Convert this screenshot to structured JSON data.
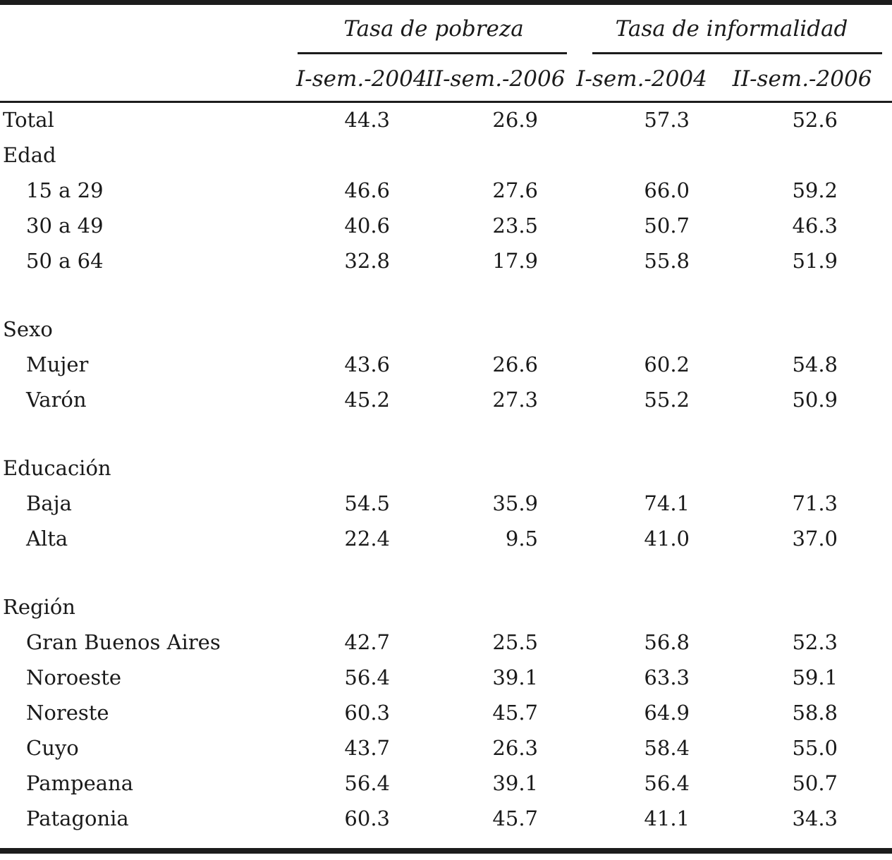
{
  "table": {
    "col_groups": [
      {
        "label": "Tasa de pobreza",
        "columns": [
          "I-sem.-2004",
          "II-sem.-2006"
        ]
      },
      {
        "label": "Tasa de informalidad",
        "columns": [
          "I-sem.-2004",
          "II-sem.-2006"
        ]
      }
    ],
    "rows": [
      {
        "type": "data",
        "label": "Total",
        "indent": false,
        "values": [
          "44.3",
          "26.9",
          "57.3",
          "52.6"
        ]
      },
      {
        "type": "section",
        "label": "Edad",
        "indent": false,
        "values": []
      },
      {
        "type": "data",
        "label": "15 a 29",
        "indent": true,
        "values": [
          "46.6",
          "27.6",
          "66.0",
          "59.2"
        ]
      },
      {
        "type": "data",
        "label": "30 a 49",
        "indent": true,
        "values": [
          "40.6",
          "23.5",
          "50.7",
          "46.3"
        ]
      },
      {
        "type": "data",
        "label": "50 a 64",
        "indent": true,
        "values": [
          "32.8",
          "17.9",
          "55.8",
          "51.9"
        ]
      },
      {
        "type": "spacer"
      },
      {
        "type": "section",
        "label": "Sexo",
        "indent": false,
        "values": []
      },
      {
        "type": "data",
        "label": "Mujer",
        "indent": true,
        "values": [
          "43.6",
          "26.6",
          "60.2",
          "54.8"
        ]
      },
      {
        "type": "data",
        "label": "Varón",
        "indent": true,
        "values": [
          "45.2",
          "27.3",
          "55.2",
          "50.9"
        ]
      },
      {
        "type": "spacer"
      },
      {
        "type": "section",
        "label": "Educación",
        "indent": false,
        "values": []
      },
      {
        "type": "data",
        "label": "Baja",
        "indent": true,
        "values": [
          "54.5",
          "35.9",
          "74.1",
          "71.3"
        ]
      },
      {
        "type": "data",
        "label": "Alta",
        "indent": true,
        "values": [
          "22.4",
          "9.5",
          "41.0",
          "37.0"
        ]
      },
      {
        "type": "spacer"
      },
      {
        "type": "section",
        "label": "Región",
        "indent": false,
        "values": []
      },
      {
        "type": "data",
        "label": "Gran Buenos Aires",
        "indent": true,
        "values": [
          "42.7",
          "25.5",
          "56.8",
          "52.3"
        ]
      },
      {
        "type": "data",
        "label": "Noroeste",
        "indent": true,
        "values": [
          "56.4",
          "39.1",
          "63.3",
          "59.1"
        ]
      },
      {
        "type": "data",
        "label": "Noreste",
        "indent": true,
        "values": [
          "60.3",
          "45.7",
          "64.9",
          "58.8"
        ]
      },
      {
        "type": "data",
        "label": "Cuyo",
        "indent": true,
        "values": [
          "43.7",
          "26.3",
          "58.4",
          "55.0"
        ]
      },
      {
        "type": "data",
        "label": "Pampeana",
        "indent": true,
        "values": [
          "56.4",
          "39.1",
          "56.4",
          "50.7"
        ]
      },
      {
        "type": "data",
        "label": "Patagonia",
        "indent": true,
        "values": [
          "60.3",
          "45.7",
          "41.1",
          "34.3"
        ]
      }
    ]
  },
  "chart_data": {
    "type": "table",
    "column_groups": [
      "Tasa de pobreza",
      "Tasa de informalidad"
    ],
    "columns": [
      "Tasa de pobreza I-sem.-2004",
      "Tasa de pobreza II-sem.-2006",
      "Tasa de informalidad I-sem.-2004",
      "Tasa de informalidad II-sem.-2006"
    ],
    "categories": [
      "Total",
      "15 a 29",
      "30 a 49",
      "50 a 64",
      "Mujer",
      "Varón",
      "Baja",
      "Alta",
      "Gran Buenos Aires",
      "Noroeste",
      "Noreste",
      "Cuyo",
      "Pampeana",
      "Patagonia"
    ],
    "series": [
      {
        "name": "Tasa de pobreza I-sem.-2004",
        "values": [
          44.3,
          46.6,
          40.6,
          32.8,
          43.6,
          45.2,
          54.5,
          22.4,
          42.7,
          56.4,
          60.3,
          43.7,
          56.4,
          60.3
        ]
      },
      {
        "name": "Tasa de pobreza II-sem.-2006",
        "values": [
          26.9,
          27.6,
          23.5,
          17.9,
          26.6,
          27.3,
          35.9,
          9.5,
          25.5,
          39.1,
          45.7,
          26.3,
          39.1,
          45.7
        ]
      },
      {
        "name": "Tasa de informalidad I-sem.-2004",
        "values": [
          57.3,
          66.0,
          50.7,
          55.8,
          60.2,
          55.2,
          74.1,
          41.0,
          56.8,
          63.3,
          64.9,
          58.4,
          56.4,
          41.1
        ]
      },
      {
        "name": "Tasa de informalidad II-sem.-2006",
        "values": [
          52.6,
          59.2,
          46.3,
          51.9,
          54.8,
          50.9,
          71.3,
          37.0,
          52.3,
          59.1,
          58.8,
          55.0,
          50.7,
          34.3
        ]
      }
    ]
  },
  "colors": {
    "text": "#1a1a1a",
    "rule": "#1c1c1c",
    "background": "#ffffff"
  }
}
